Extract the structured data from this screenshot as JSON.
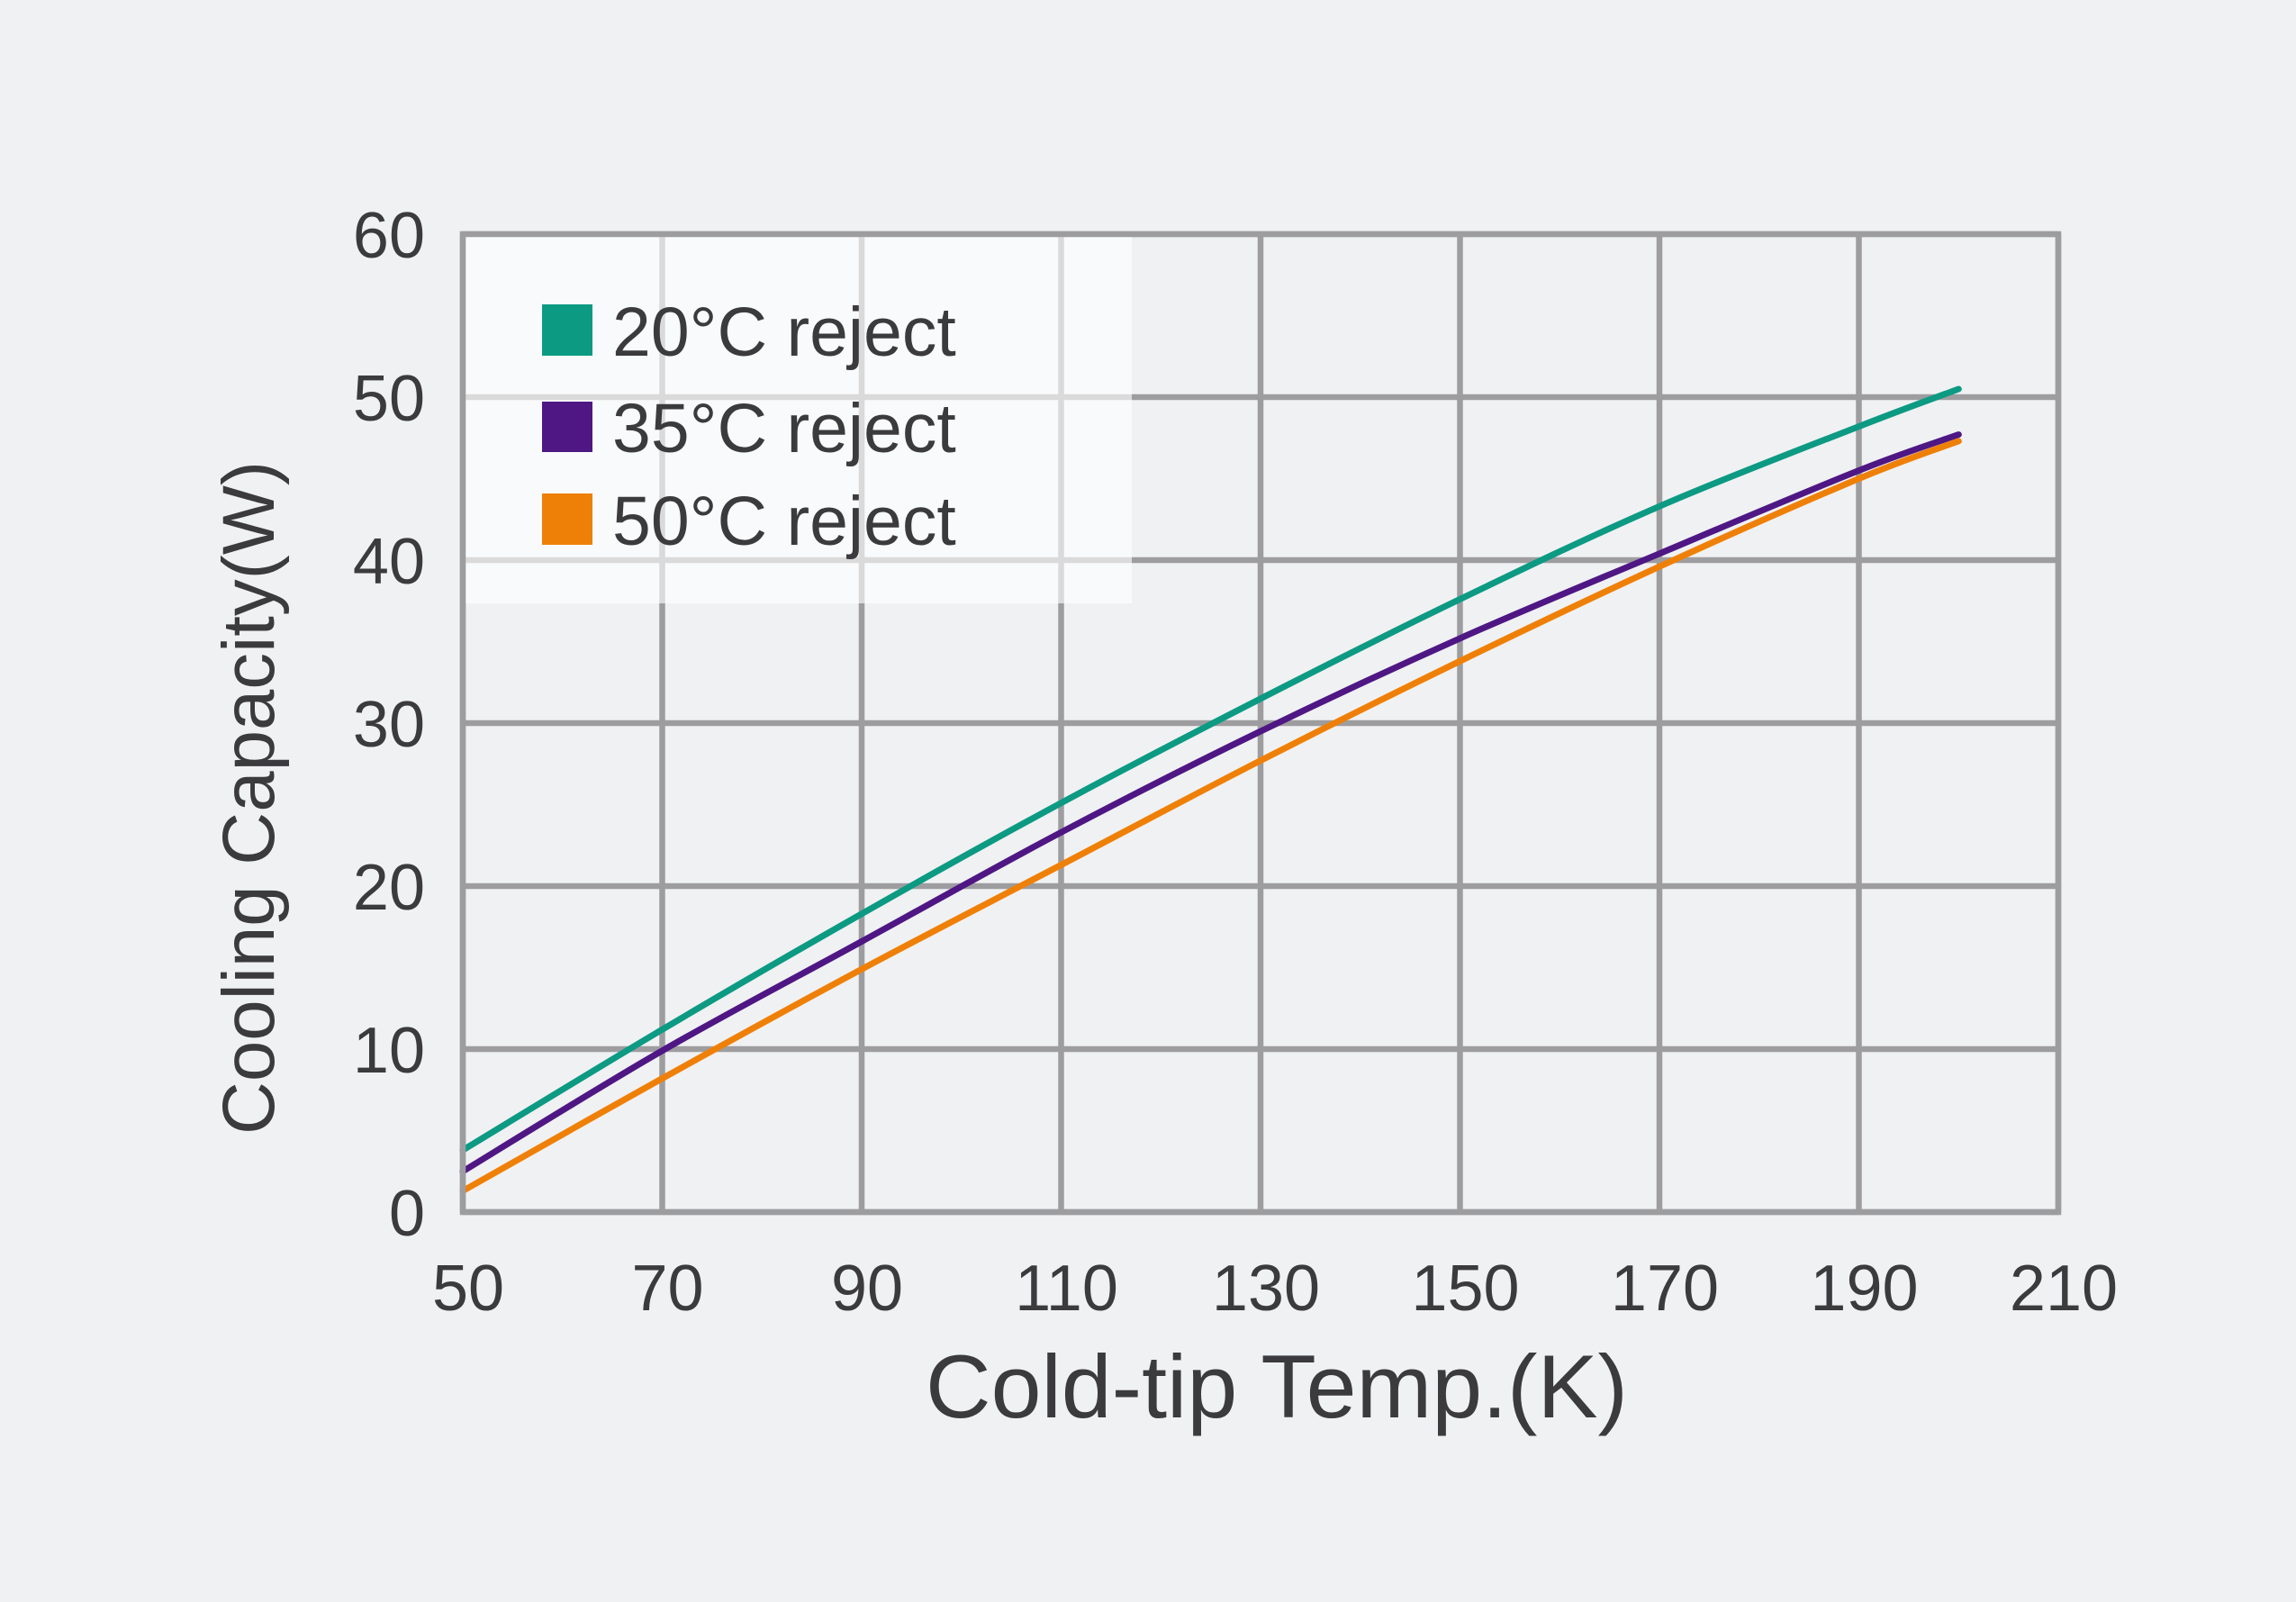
{
  "chart_data": {
    "type": "line",
    "xlabel": "Cold-tip Temp.(K)",
    "ylabel": "Cooling Capacity(W)",
    "xlim": [
      50,
      210
    ],
    "ylim": [
      0,
      60
    ],
    "xticks": [
      50,
      70,
      90,
      110,
      130,
      150,
      170,
      190,
      210
    ],
    "yticks": [
      0,
      10,
      20,
      30,
      40,
      50,
      60
    ],
    "grid": true,
    "legend_position": "top-left",
    "x": [
      50,
      70,
      90,
      110,
      130,
      150,
      170,
      190,
      200
    ],
    "series": [
      {
        "name": "20°C reject",
        "color": "#0c9a83",
        "values": [
          3.8,
          11.2,
          18.3,
          25.1,
          31.5,
          37.6,
          43.3,
          48.2,
          50.5
        ]
      },
      {
        "name": "35°C reject",
        "color": "#4f1784",
        "values": [
          2.5,
          9.9,
          16.6,
          23.3,
          29.5,
          35.2,
          40.4,
          45.5,
          47.7
        ]
      },
      {
        "name": "50°C reject",
        "color": "#ef8007",
        "values": [
          1.3,
          8.2,
          14.9,
          21.3,
          27.7,
          33.8,
          39.6,
          45.0,
          47.3
        ]
      }
    ]
  }
}
